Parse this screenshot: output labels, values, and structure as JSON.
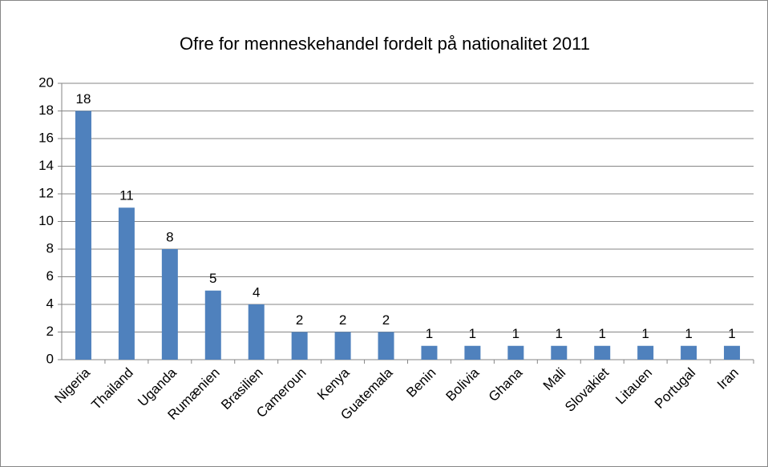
{
  "chart_data": {
    "type": "bar",
    "title": "Ofre for menneskehandel fordelt på nationalitet 2011",
    "categories": [
      "Nigeria",
      "Thailand",
      "Uganda",
      "Rumænien",
      "Brasilien",
      "Cameroun",
      "Kenya",
      "Guatemala",
      "Benin",
      "Bolivia",
      "Ghana",
      "Mali",
      "Slovakiet",
      "Litauen",
      "Portugal",
      "Iran"
    ],
    "values": [
      18,
      11,
      8,
      5,
      4,
      2,
      2,
      2,
      1,
      1,
      1,
      1,
      1,
      1,
      1,
      1
    ],
    "color": "#4f81bd",
    "ylim": [
      0,
      20
    ],
    "yticks": [
      0,
      2,
      4,
      6,
      8,
      10,
      12,
      14,
      16,
      18,
      20
    ],
    "grid": true
  }
}
